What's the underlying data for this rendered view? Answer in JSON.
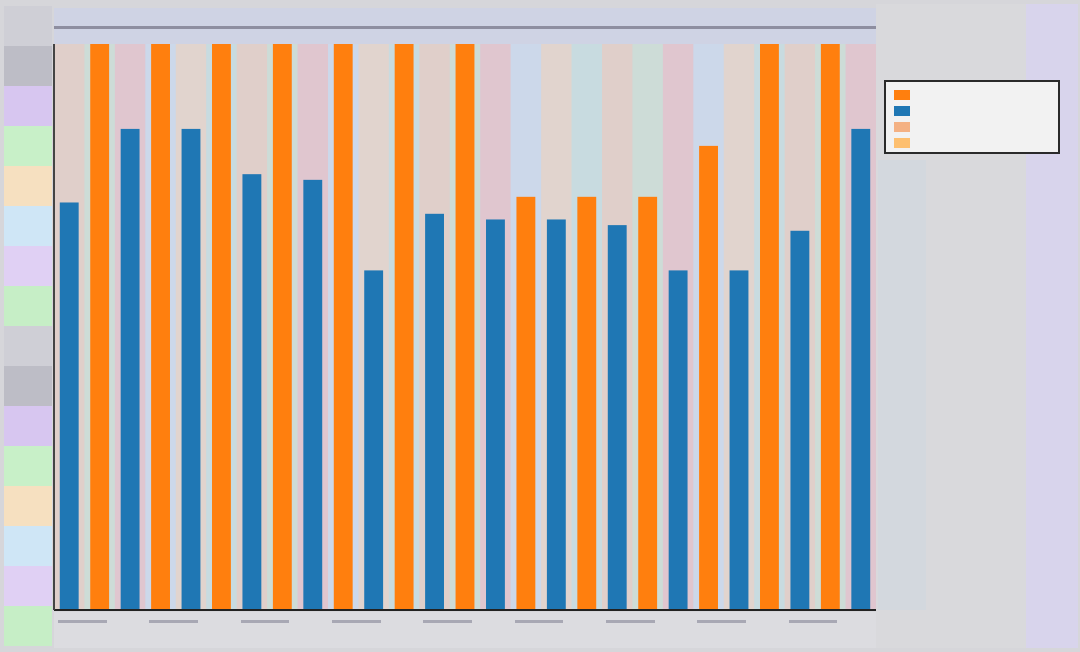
{
  "chart_data": {
    "type": "bar",
    "title": "",
    "xlabel": "",
    "ylabel": "",
    "grid": false,
    "legend_position": "top-right",
    "ylim": [
      0,
      100
    ],
    "categories": [
      "",
      "",
      "",
      "",
      "",
      "",
      "",
      "",
      "",
      "",
      "",
      "",
      "",
      "",
      "",
      "",
      "",
      "",
      "",
      "",
      "",
      "",
      "",
      "",
      "",
      "",
      ""
    ],
    "series": [
      {
        "color": "#1f77b4",
        "values": [
          72,
          0,
          85,
          0,
          85,
          0,
          77,
          0,
          76,
          0,
          60,
          0,
          70,
          0,
          69,
          0,
          69,
          0,
          68,
          0,
          60,
          0,
          60,
          0,
          67,
          0,
          85
        ]
      },
      {
        "color": "#ff7f0e",
        "values": [
          0,
          100,
          0,
          100,
          0,
          100,
          0,
          100,
          0,
          100,
          0,
          100,
          0,
          100,
          0,
          73,
          0,
          73,
          0,
          73,
          0,
          82,
          0,
          100,
          0,
          100,
          0
        ]
      }
    ],
    "legend": [
      {
        "color": "#ff7f0e"
      },
      {
        "color": "#1f77b4"
      },
      {
        "color": "#f4b183"
      },
      {
        "color": "#fdbf6f"
      }
    ]
  }
}
